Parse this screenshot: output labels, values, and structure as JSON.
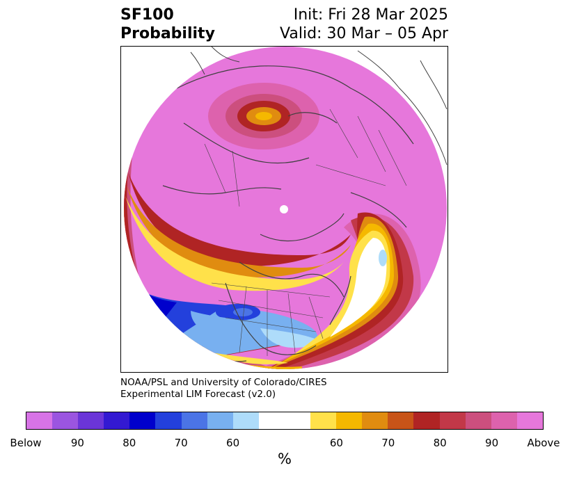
{
  "title": {
    "line1": "SF100",
    "line2": "Probability"
  },
  "init": {
    "line1": "Init: Fri 28 Mar 2025",
    "line2": "Valid: 30 Mar – 05 Apr"
  },
  "credit": {
    "line1": "NOAA/PSL and University of Colorado/CIRES",
    "line2": "Experimental LIM Forecast (v2.0)"
  },
  "colorbar": {
    "unit": "%",
    "colors": [
      "#d773e6",
      "#9b55e0",
      "#6b35d8",
      "#3319d2",
      "#0000cc",
      "#2340dc",
      "#4b74e6",
      "#78b0f0",
      "#aedcfa",
      "#ffffff",
      "#ffffff",
      "#ffe14a",
      "#f5b800",
      "#e08c10",
      "#c85418",
      "#b02424",
      "#c23848",
      "#cc4f7e",
      "#dd62ad",
      "#e677db"
    ],
    "ticks": [
      "Below",
      "90",
      "80",
      "70",
      "60",
      "60",
      "70",
      "80",
      "90",
      "Above"
    ]
  }
}
